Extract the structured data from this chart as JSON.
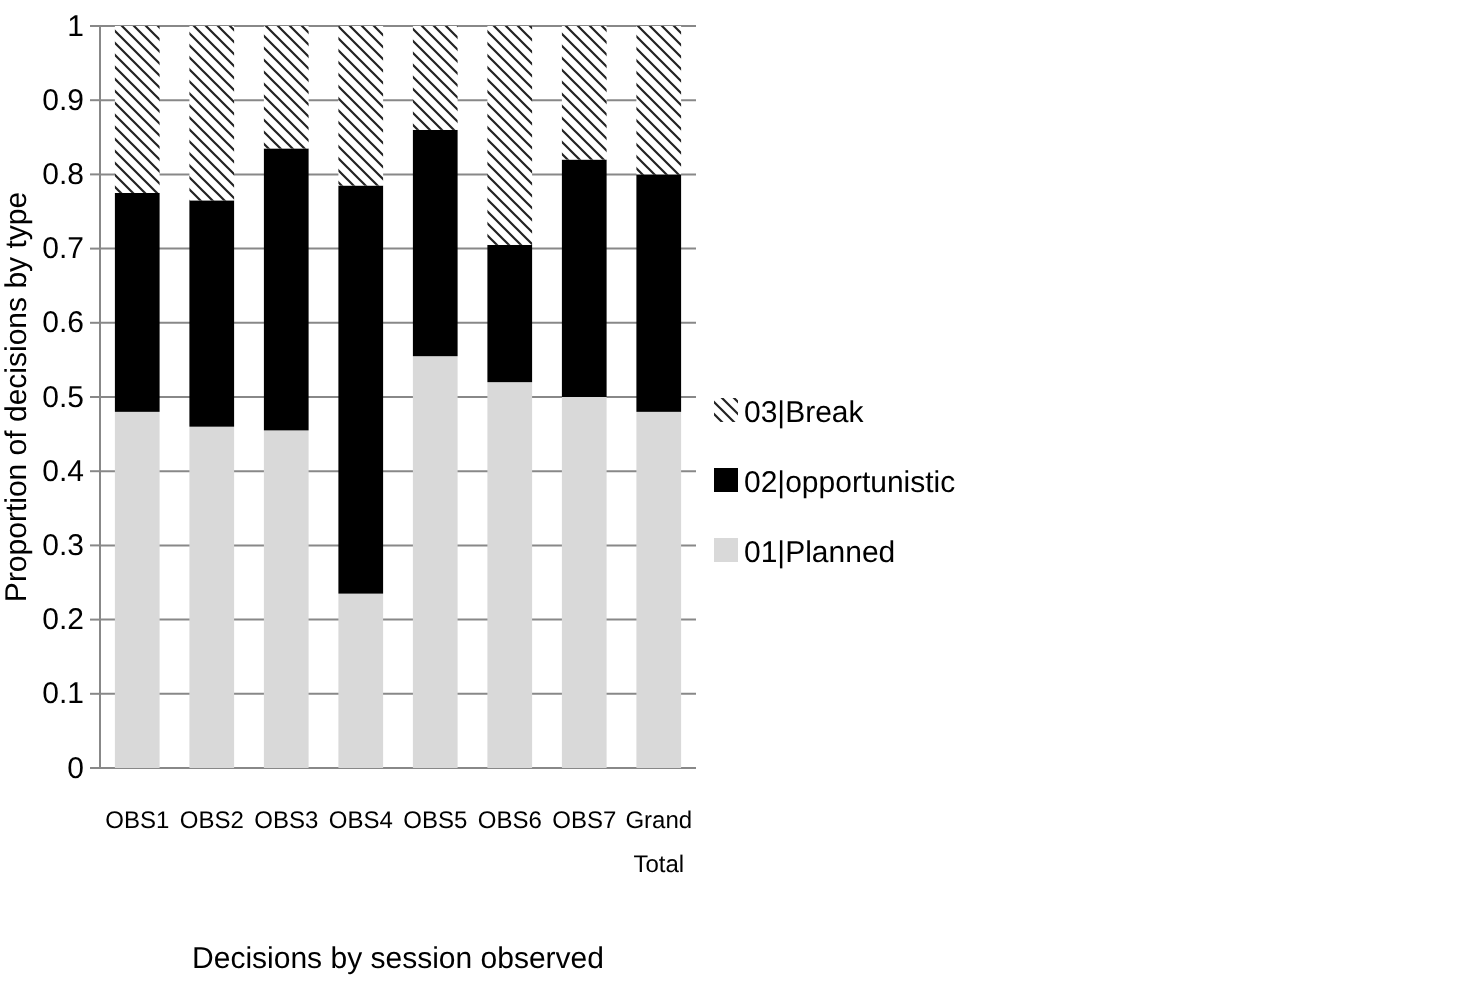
{
  "chart_data": {
    "type": "bar",
    "stacked": true,
    "xlabel": "Decisions by session observed",
    "ylabel": "Proportion of decisions by type",
    "categories": [
      "OBS1",
      "OBS2",
      "OBS3",
      "OBS4",
      "OBS5",
      "OBS6",
      "OBS7",
      "Grand Total"
    ],
    "series": [
      {
        "name": "01|Planned",
        "color": "#d9d9d9",
        "values": [
          0.48,
          0.46,
          0.455,
          0.235,
          0.555,
          0.52,
          0.5,
          0.48
        ]
      },
      {
        "name": "02|opportunistic",
        "color": "#000000",
        "values": [
          0.295,
          0.305,
          0.38,
          0.55,
          0.305,
          0.185,
          0.32,
          0.32
        ]
      },
      {
        "name": "03|Break",
        "color": "#ffffff",
        "values": [
          0.225,
          0.235,
          0.165,
          0.215,
          0.14,
          0.295,
          0.18,
          0.2
        ]
      }
    ],
    "ylim": [
      0,
      1
    ],
    "yticks": [
      0,
      0.1,
      0.2,
      0.3,
      0.4,
      0.5,
      0.6,
      0.7,
      0.8,
      0.9,
      1
    ],
    "grid": "y",
    "legend": "right"
  }
}
